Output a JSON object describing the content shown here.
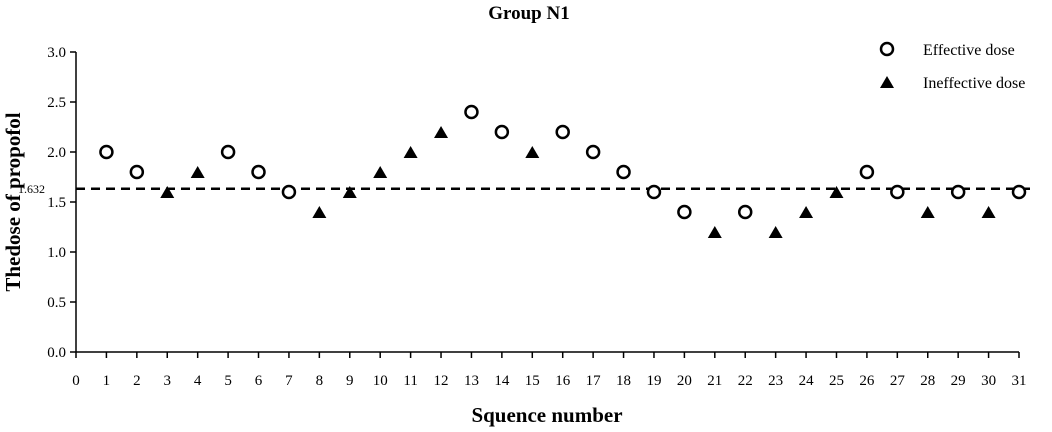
{
  "chart_data": {
    "type": "scatter",
    "title": "Group N1",
    "xlabel": "Squence number",
    "ylabel": "Thedose of propofol",
    "xlim": [
      0,
      31
    ],
    "ylim": [
      0,
      3.0
    ],
    "x_ticks": [
      0,
      1,
      2,
      3,
      4,
      5,
      6,
      7,
      8,
      9,
      10,
      11,
      12,
      13,
      14,
      15,
      16,
      17,
      18,
      19,
      20,
      21,
      22,
      23,
      24,
      25,
      26,
      27,
      28,
      29,
      30,
      31
    ],
    "y_ticks": [
      "0.0",
      "0.5",
      "1.0",
      "1.5",
      "2.0",
      "2.5",
      "3.0"
    ],
    "grid": false,
    "legend_position": "top-right",
    "reference_line": {
      "value": 1.632,
      "label": "1.632",
      "style": "dashed"
    },
    "series": [
      {
        "name": "Effective dose",
        "marker": "open-circle",
        "color": "#000000",
        "points": [
          {
            "x": 1,
            "y": 2.0
          },
          {
            "x": 2,
            "y": 1.8
          },
          {
            "x": 5,
            "y": 2.0
          },
          {
            "x": 6,
            "y": 1.8
          },
          {
            "x": 7,
            "y": 1.6
          },
          {
            "x": 13,
            "y": 2.4
          },
          {
            "x": 14,
            "y": 2.2
          },
          {
            "x": 16,
            "y": 2.2
          },
          {
            "x": 17,
            "y": 2.0
          },
          {
            "x": 18,
            "y": 1.8
          },
          {
            "x": 19,
            "y": 1.6
          },
          {
            "x": 20,
            "y": 1.4
          },
          {
            "x": 22,
            "y": 1.4
          },
          {
            "x": 26,
            "y": 1.8
          },
          {
            "x": 27,
            "y": 1.6
          },
          {
            "x": 29,
            "y": 1.6
          },
          {
            "x": 31,
            "y": 1.6
          }
        ]
      },
      {
        "name": "Ineffective dose",
        "marker": "filled-triangle",
        "color": "#000000",
        "points": [
          {
            "x": 3,
            "y": 1.6
          },
          {
            "x": 4,
            "y": 1.8
          },
          {
            "x": 8,
            "y": 1.4
          },
          {
            "x": 9,
            "y": 1.6
          },
          {
            "x": 10,
            "y": 1.8
          },
          {
            "x": 11,
            "y": 2.0
          },
          {
            "x": 12,
            "y": 2.2
          },
          {
            "x": 15,
            "y": 2.0
          },
          {
            "x": 21,
            "y": 1.2
          },
          {
            "x": 23,
            "y": 1.2
          },
          {
            "x": 24,
            "y": 1.4
          },
          {
            "x": 25,
            "y": 1.6
          },
          {
            "x": 28,
            "y": 1.4
          },
          {
            "x": 30,
            "y": 1.4
          }
        ]
      }
    ]
  }
}
